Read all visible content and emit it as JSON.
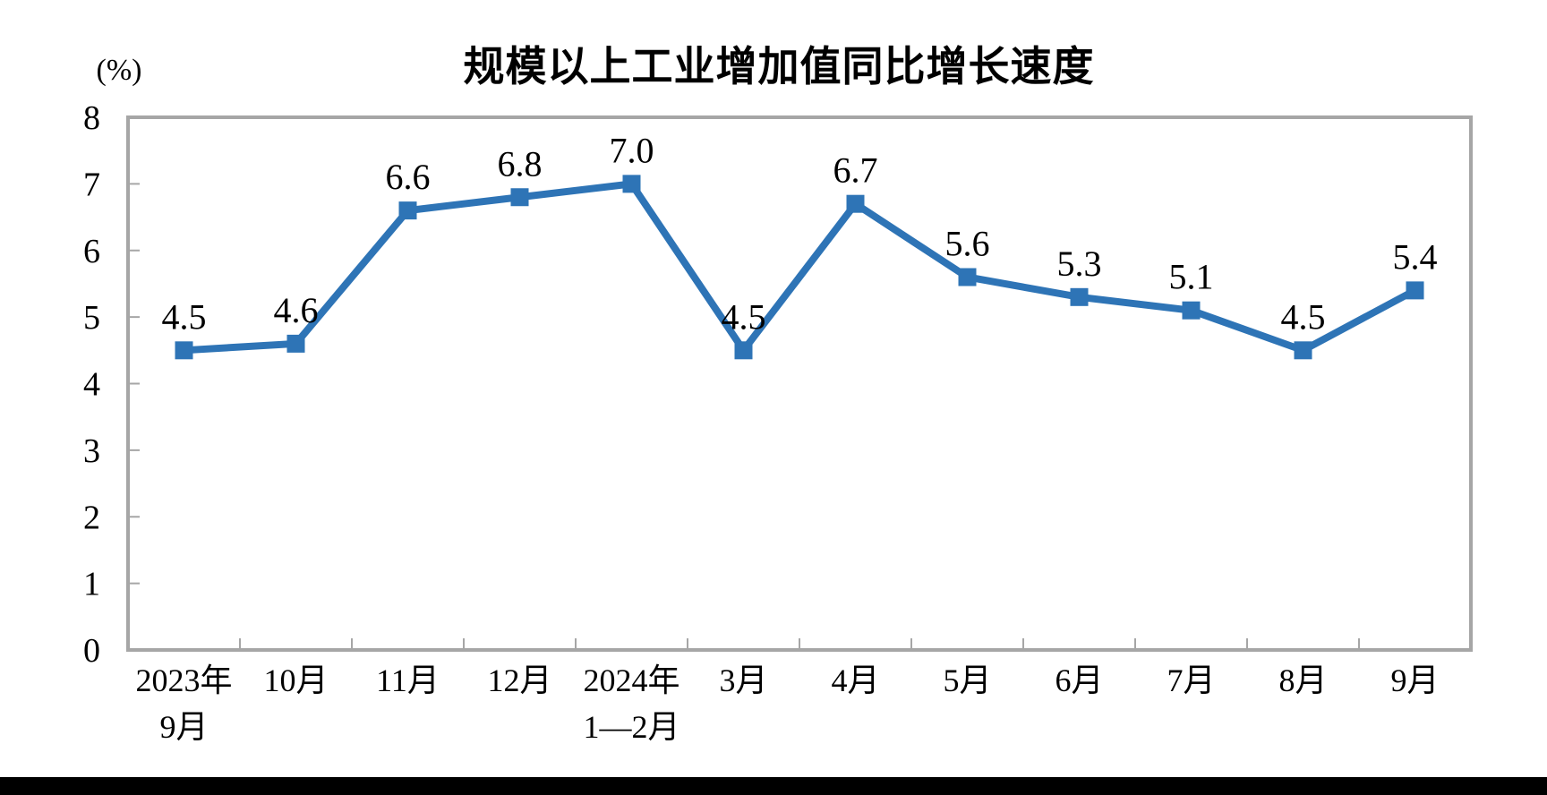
{
  "page": {
    "background_color": "#ffffff",
    "footer_bar_color": "#000000"
  },
  "chart_data": {
    "type": "line",
    "title": "规模以上工业增加值同比增长速度",
    "unit_label": "(%)",
    "categories": [
      {
        "line1": "2023年",
        "line2": "9月"
      },
      {
        "line1": "10月",
        "line2": ""
      },
      {
        "line1": "11月",
        "line2": ""
      },
      {
        "line1": "12月",
        "line2": ""
      },
      {
        "line1": "2024年",
        "line2": "1—2月"
      },
      {
        "line1": "3月",
        "line2": ""
      },
      {
        "line1": "4月",
        "line2": ""
      },
      {
        "line1": "5月",
        "line2": ""
      },
      {
        "line1": "6月",
        "line2": ""
      },
      {
        "line1": "7月",
        "line2": ""
      },
      {
        "line1": "8月",
        "line2": ""
      },
      {
        "line1": "9月",
        "line2": ""
      }
    ],
    "series": [
      {
        "values": [
          4.5,
          4.6,
          6.6,
          6.8,
          7.0,
          4.5,
          6.7,
          5.6,
          5.3,
          5.1,
          4.5,
          5.4
        ],
        "labels": [
          "4.5",
          "4.6",
          "6.6",
          "6.8",
          "7.0",
          "4.5",
          "6.7",
          "5.6",
          "5.3",
          "5.1",
          "4.5",
          "5.4"
        ],
        "color": "#2E74B6",
        "marker": "square"
      }
    ],
    "ylim": [
      0,
      8
    ],
    "yticks": [
      0,
      1,
      2,
      3,
      4,
      5,
      6,
      7,
      8
    ],
    "grid": false,
    "legend_position": "none",
    "axis_color": "#A6A6A6",
    "text_color": "#000000"
  }
}
